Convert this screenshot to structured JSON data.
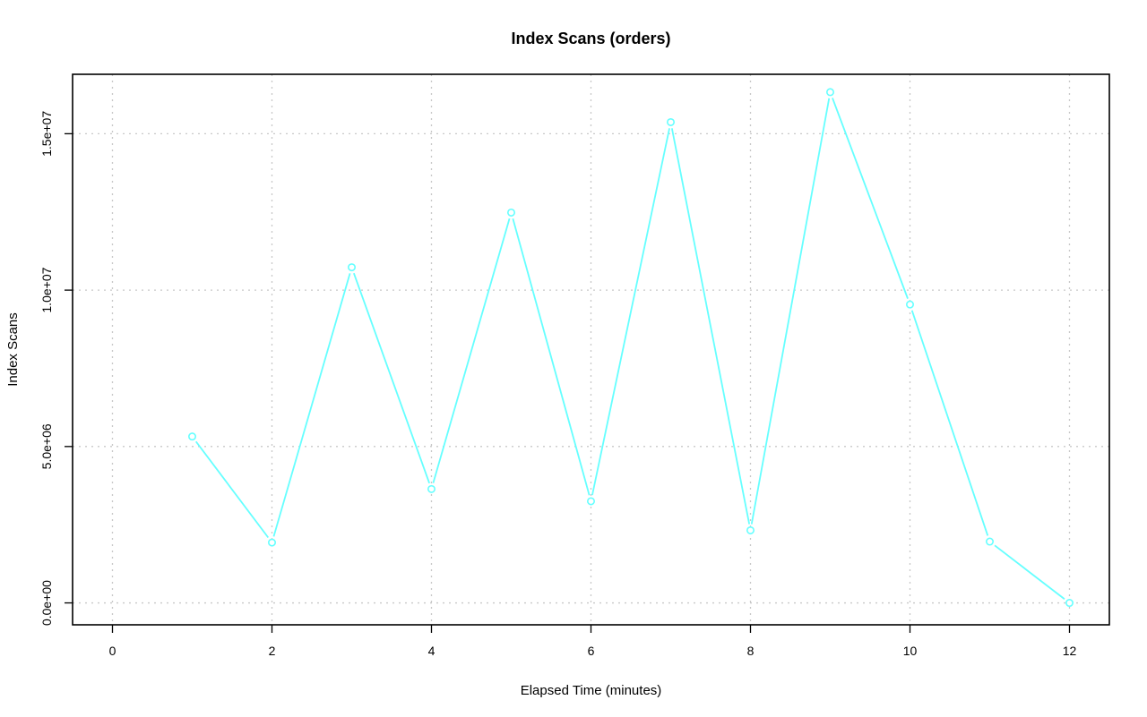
{
  "chart_data": {
    "type": "line",
    "title": "Index Scans (orders)",
    "xlabel": "Elapsed Time (minutes)",
    "ylabel": "Index Scans",
    "xlim": [
      -0.5,
      12.5
    ],
    "ylim": [
      -700000,
      16900000
    ],
    "x_ticks": [
      0,
      2,
      4,
      6,
      8,
      10,
      12
    ],
    "x_tick_labels": [
      "0",
      "2",
      "4",
      "6",
      "8",
      "10",
      "12"
    ],
    "y_ticks": [
      0,
      5000000,
      10000000,
      15000000
    ],
    "y_tick_labels": [
      "0.0e+00",
      "5.0e+06",
      "1.0e+07",
      "1.5e+07"
    ],
    "grid": true,
    "marker": "open-circle",
    "series": [
      {
        "color": "#66ffff",
        "x": [
          1,
          2,
          3,
          4,
          5,
          6,
          7,
          8,
          9,
          10,
          11,
          12
        ],
        "values": [
          5320000,
          1930000,
          10730000,
          3640000,
          12480000,
          3250000,
          15370000,
          2320000,
          16330000,
          9540000,
          1960000,
          0
        ]
      }
    ]
  }
}
